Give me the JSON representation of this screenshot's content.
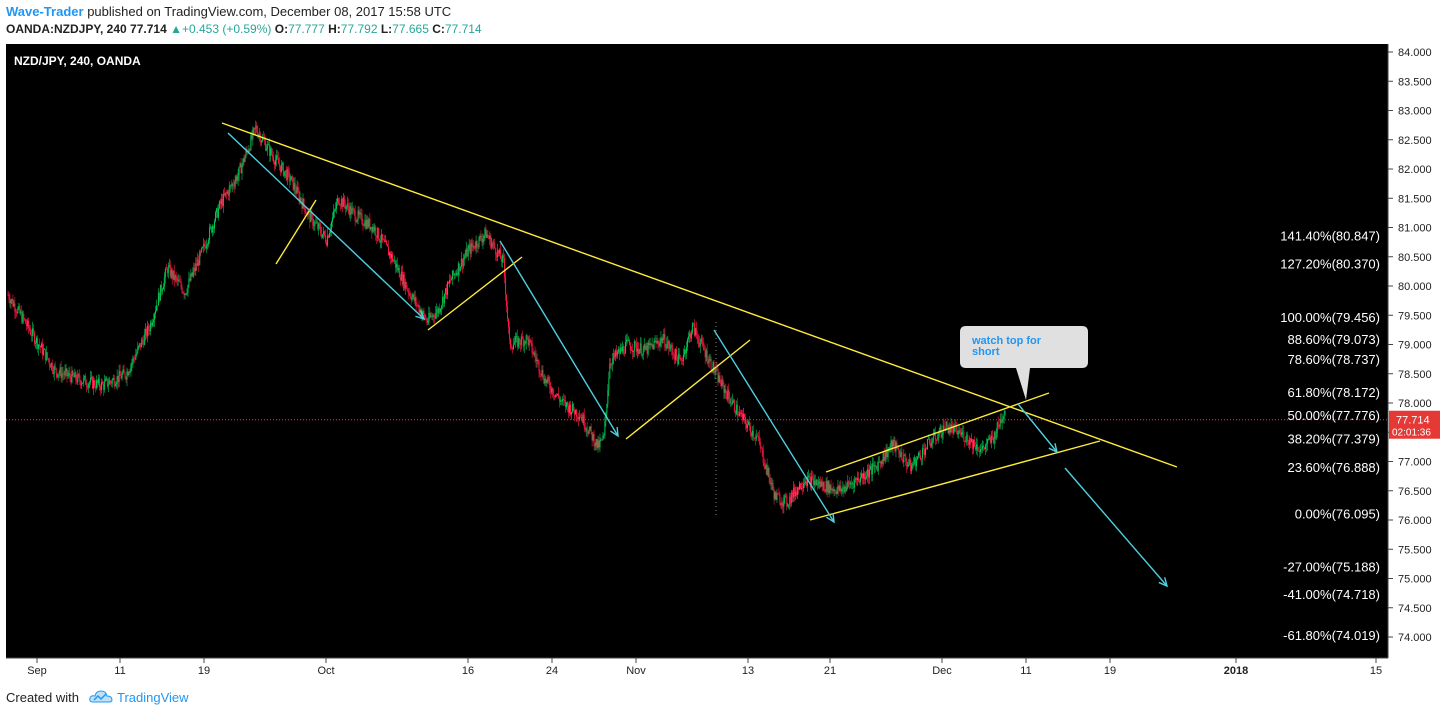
{
  "header": {
    "author": "Wave-Trader",
    "published": "published on TradingView.com, December 08, 2017 15:58 UTC",
    "symbol": "OANDA:NZDJPY, 240",
    "last": "77.714",
    "change": "+0.453 (+0.59%)",
    "open_label": "O:",
    "open": "77.777",
    "high_label": "H:",
    "high": "77.792",
    "low_label": "L:",
    "low": "77.665",
    "close_label": "C:",
    "close": "77.714"
  },
  "footer": {
    "created_with": "Created with",
    "brand": "TradingView"
  },
  "colors": {
    "background": "#000000",
    "up_candle": "#00c853",
    "down_candle": "#ff1744",
    "trendline": "#ffeb3b",
    "arrow": "#4dd0e1",
    "price_line": "#e53935",
    "axis_text": "#222222",
    "fib_text": "#ffffff"
  },
  "chart_data": {
    "type": "candlestick",
    "title": "NZD/JPY, 240, OANDA",
    "ylim": [
      73.6,
      84.1
    ],
    "y_ticks": [
      "84.000",
      "83.500",
      "83.000",
      "82.500",
      "82.000",
      "81.500",
      "81.000",
      "80.500",
      "80.000",
      "79.500",
      "79.000",
      "78.500",
      "78.000",
      "77.500",
      "77.000",
      "76.500",
      "76.000",
      "75.500",
      "75.000",
      "74.500",
      "74.000"
    ],
    "x_ticks": [
      "Sep",
      "11",
      "19",
      "Oct",
      "16",
      "24",
      "Nov",
      "13",
      "21",
      "Dec",
      "11",
      "19",
      "2018",
      "15"
    ],
    "current_price": "77.714",
    "countdown": "02:01:36",
    "price_path": [
      [
        0,
        79.85
      ],
      [
        4,
        79.2
      ],
      [
        8,
        78.55
      ],
      [
        12,
        78.4
      ],
      [
        16,
        78.3
      ],
      [
        20,
        78.5
      ],
      [
        24,
        79.3
      ],
      [
        27,
        80.3
      ],
      [
        30,
        79.9
      ],
      [
        33,
        80.6
      ],
      [
        36,
        81.4
      ],
      [
        39,
        81.9
      ],
      [
        42,
        82.7
      ],
      [
        45,
        82.2
      ],
      [
        48,
        81.8
      ],
      [
        51,
        81.2
      ],
      [
        54,
        80.8
      ],
      [
        56,
        81.5
      ],
      [
        59,
        81.2
      ],
      [
        62,
        81.0
      ],
      [
        65,
        80.5
      ],
      [
        68,
        79.9
      ],
      [
        71,
        79.4
      ],
      [
        73,
        79.6
      ],
      [
        75,
        80.1
      ],
      [
        78,
        80.6
      ],
      [
        81,
        80.9
      ],
      [
        84,
        80.4
      ],
      [
        85,
        79.0
      ],
      [
        88,
        79.1
      ],
      [
        91,
        78.4
      ],
      [
        94,
        78.0
      ],
      [
        97,
        77.8
      ],
      [
        100,
        77.25
      ],
      [
        101,
        77.4
      ],
      [
        102,
        78.7
      ],
      [
        105,
        79.0
      ],
      [
        108,
        78.9
      ],
      [
        111,
        79.1
      ],
      [
        114,
        78.7
      ],
      [
        116,
        79.3
      ],
      [
        118,
        78.9
      ],
      [
        121,
        78.3
      ],
      [
        124,
        77.8
      ],
      [
        127,
        77.4
      ],
      [
        130,
        76.4
      ],
      [
        132,
        76.3
      ],
      [
        135,
        76.7
      ],
      [
        138,
        76.6
      ],
      [
        141,
        76.5
      ],
      [
        144,
        76.7
      ],
      [
        147,
        76.9
      ],
      [
        150,
        77.3
      ],
      [
        153,
        76.9
      ],
      [
        156,
        77.3
      ],
      [
        159,
        77.6
      ],
      [
        162,
        77.45
      ],
      [
        165,
        77.2
      ],
      [
        167,
        77.4
      ],
      [
        169,
        77.9
      ]
    ],
    "fib_levels": [
      {
        "label": "141.40%(80.847)",
        "value": 80.847
      },
      {
        "label": "127.20%(80.370)",
        "value": 80.37
      },
      {
        "label": "100.00%(79.456)",
        "value": 79.456
      },
      {
        "label": "88.60%(79.073)",
        "value": 79.073
      },
      {
        "label": "78.60%(78.737)",
        "value": 78.737
      },
      {
        "label": "61.80%(78.172)",
        "value": 78.172
      },
      {
        "label": "50.00%(77.776)",
        "value": 77.776
      },
      {
        "label": "38.20%(77.379)",
        "value": 77.379
      },
      {
        "label": "23.60%(76.888)",
        "value": 76.888
      },
      {
        "label": "0.00%(76.095)",
        "value": 76.095
      },
      {
        "label": "-27.00%(75.188)",
        "value": 75.188
      },
      {
        "label": "-41.00%(74.718)",
        "value": 74.718
      },
      {
        "label": "-61.80%(74.019)",
        "value": 74.019
      }
    ],
    "callout": "watch top for short"
  }
}
